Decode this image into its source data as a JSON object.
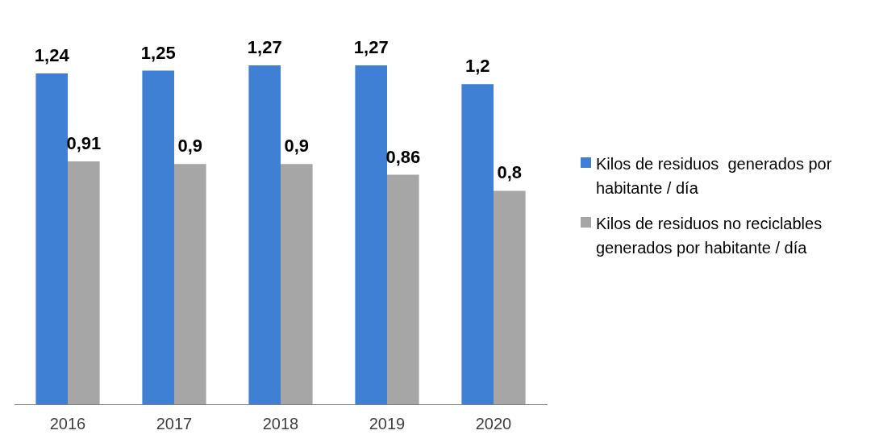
{
  "chart_data": {
    "type": "bar",
    "categories": [
      "2016",
      "2017",
      "2018",
      "2019",
      "2020"
    ],
    "series": [
      {
        "name": "Kilos de residuos  generados por habitante / día",
        "color": "#3f7fd4",
        "values": [
          1.24,
          1.25,
          1.27,
          1.27,
          1.2
        ],
        "value_labels": [
          "1,24",
          "1,25",
          "1,27",
          "1,27",
          "1,2"
        ]
      },
      {
        "name": "Kilos de residuos no reciclables generados por habitante / día",
        "color": "#a6a6a6",
        "values": [
          0.91,
          0.9,
          0.9,
          0.86,
          0.8
        ],
        "value_labels": [
          "0,91",
          "0,9",
          "0,9",
          "0,86",
          "0,8"
        ]
      }
    ],
    "tick_labels": "x",
    "legend": "right",
    "grid": false
  }
}
